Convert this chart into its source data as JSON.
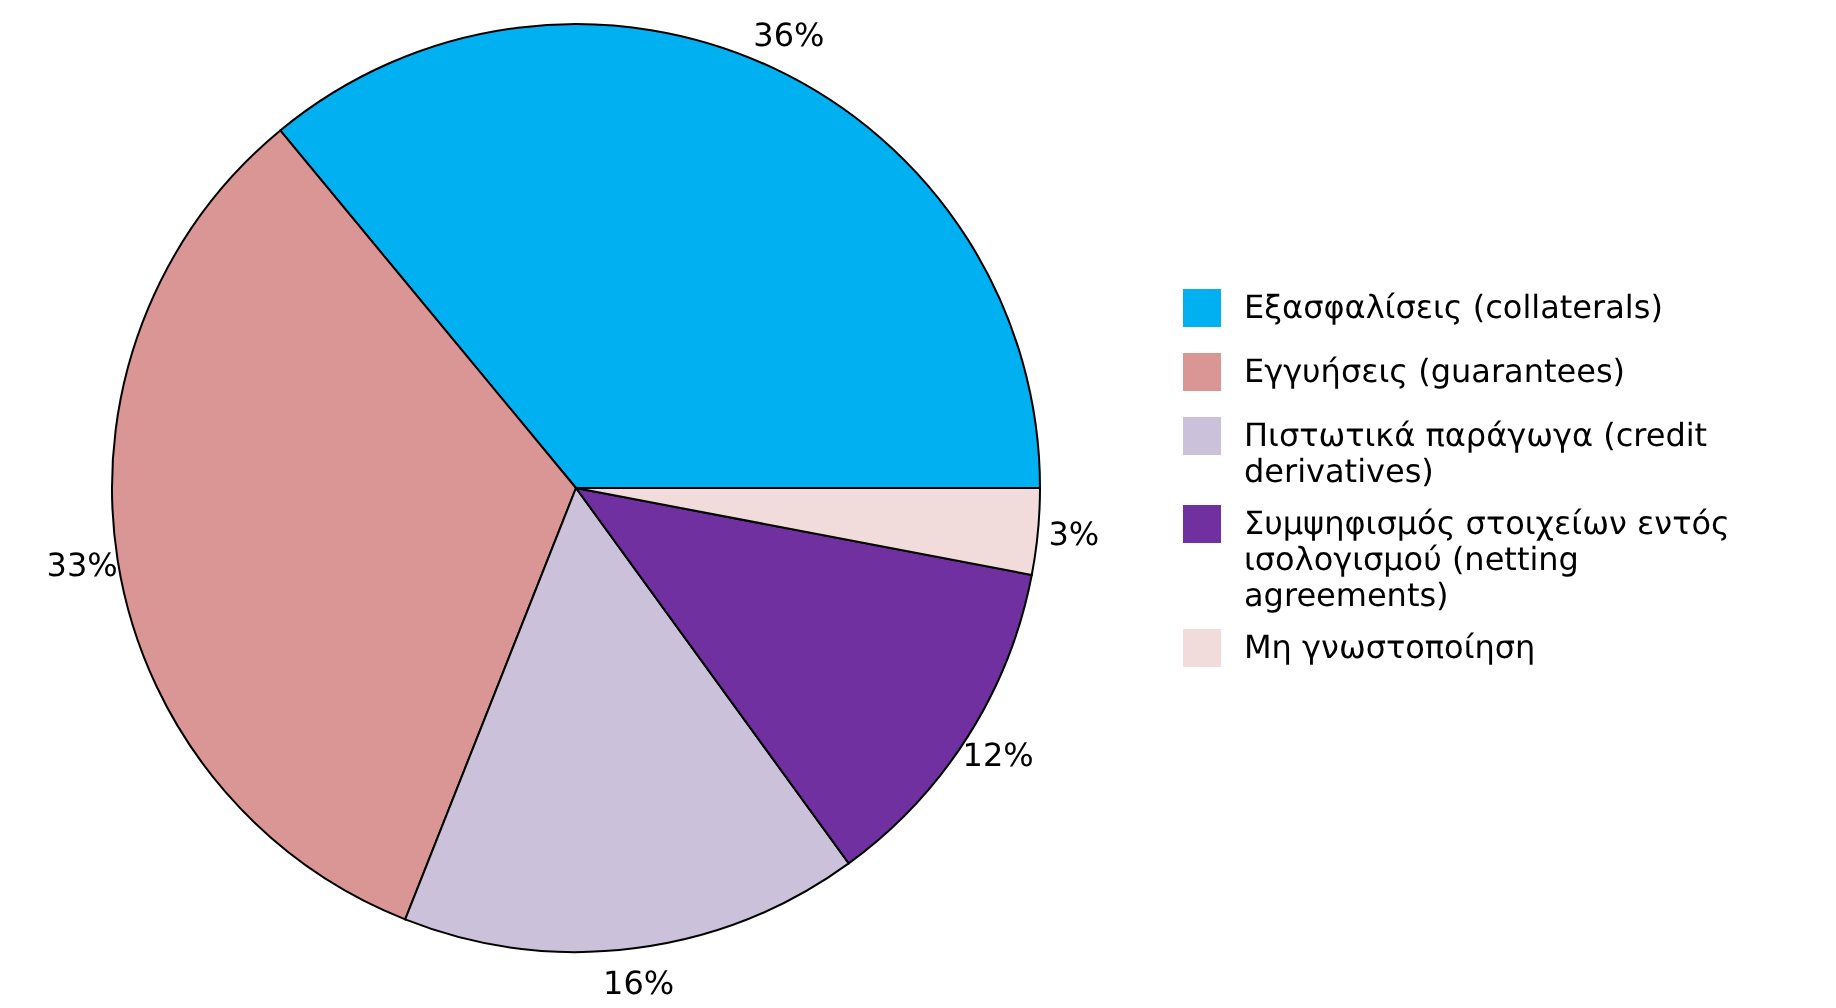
{
  "chart_data": {
    "type": "pie",
    "categories": [
      "Εξασφαλίσεις (collaterals)",
      "Εγγυήσεις (guarantees)",
      "Πιστωτικά παράγωγα (credit derivatives)",
      "Συμψηφισμός στοιχείων εντός ισολογισμού (netting agreements)",
      "Μη γνωστοποίηση"
    ],
    "values": [
      36,
      33,
      16,
      12,
      3
    ],
    "colors": [
      "#00b0f0",
      "#d99694",
      "#ccc1da",
      "#7030a0",
      "#f2dcdb"
    ],
    "value_labels": [
      "36%",
      "33%",
      "16%",
      "12%",
      "3%"
    ],
    "legend": "right"
  }
}
